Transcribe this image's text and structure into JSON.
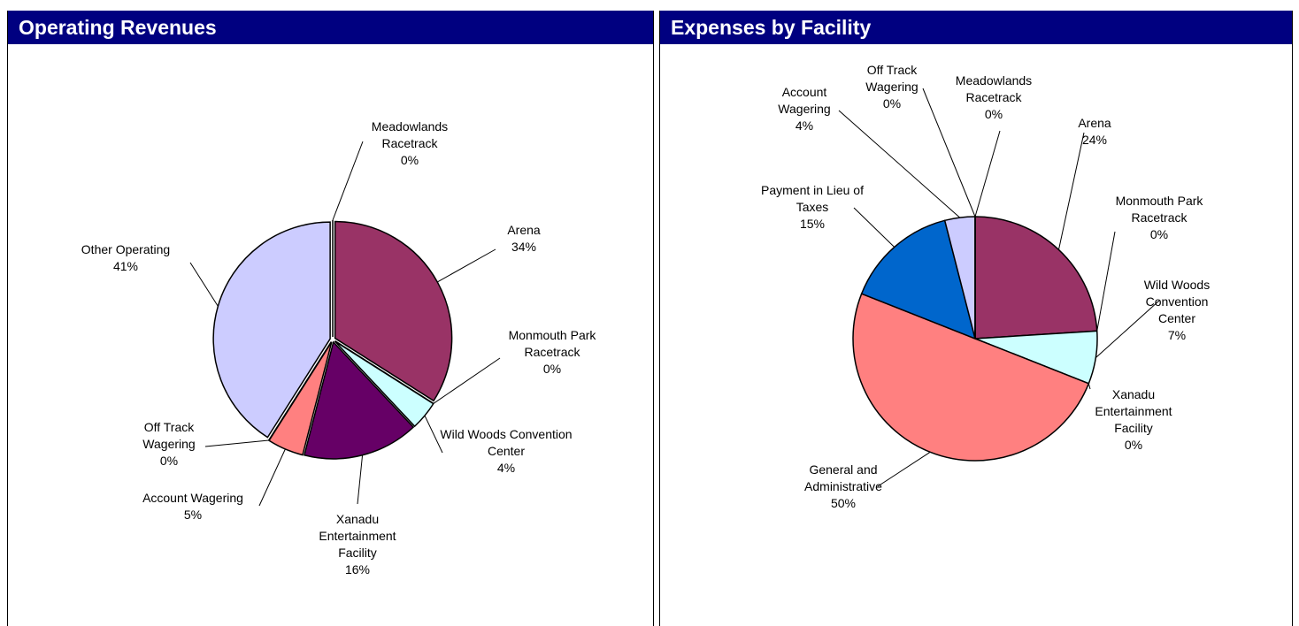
{
  "chart_data": [
    {
      "type": "pie",
      "title": "Operating Revenues",
      "categories": [
        "Meadowlands Racetrack",
        "Arena",
        "Monmouth Park Racetrack",
        "Wild Woods Convention Center",
        "Xanadu Entertainment Facility",
        "Account Wagering",
        "Off Track Wagering",
        "Other Operating"
      ],
      "values": [
        0,
        34,
        0,
        4,
        16,
        5,
        0,
        41
      ],
      "value_labels": [
        "0%",
        "34%",
        "0%",
        "4%",
        "16%",
        "5%",
        "0%",
        "41%"
      ],
      "colors": [
        "#333399",
        "#993366",
        "#ffffcc",
        "#ccffff",
        "#660066",
        "#ff8080",
        "#0066cc",
        "#ccccff"
      ]
    },
    {
      "type": "pie",
      "title": "Expenses by Facility",
      "categories": [
        "Arena",
        "Monmouth Park Racetrack",
        "Wild Woods Convention Center",
        "Xanadu Entertainment Facility",
        "General and Administrative",
        "Payment in Lieu of Taxes",
        "Account Wagering",
        "Off Track Wagering",
        "Meadowlands Racetrack"
      ],
      "values": [
        24,
        0,
        7,
        0,
        50,
        15,
        4,
        0,
        0
      ],
      "value_labels": [
        "24%",
        "0%",
        "7%",
        "0%",
        "50%",
        "15%",
        "4%",
        "0%",
        "0%"
      ],
      "colors": [
        "#993366",
        "#ffffcc",
        "#ccffff",
        "#660066",
        "#ff8080",
        "#0066cc",
        "#ccccff",
        "#333399",
        "#000080"
      ]
    }
  ]
}
